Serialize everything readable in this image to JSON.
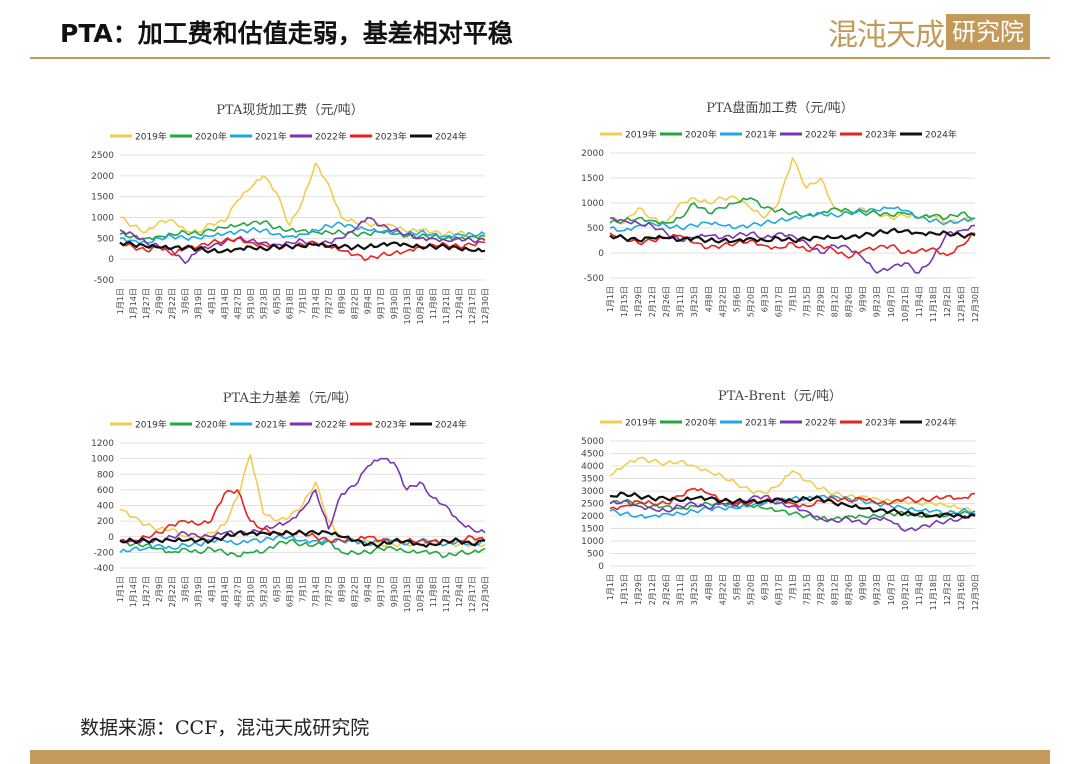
{
  "header": {
    "title": "PTA：加工费和估值走弱，基差相对平稳",
    "logo_text": "混沌天成",
    "logo_box_text": "研究院"
  },
  "footer": {
    "source": "数据来源：CCF，混沌天成研究院"
  },
  "colors": {
    "accent": "#c49a5a",
    "2019": "#f2cc4e",
    "2020": "#22a640",
    "2021": "#21a7e0",
    "2022": "#7a35b3",
    "2023": "#e8221d",
    "2024": "#111111"
  },
  "chart_data": [
    {
      "type": "line",
      "title": "PTA现货加工费（元/吨）",
      "ylim": [
        -500,
        2500
      ],
      "yticks": [
        "-500",
        "0",
        "500",
        "1000",
        "1500",
        "2000",
        "2500"
      ],
      "xticks": [
        "1月1日",
        "1月14日",
        "1月27日",
        "2月9日",
        "2月22日",
        "3月6日",
        "3月19日",
        "4月1日",
        "4月14日",
        "4月27日",
        "5月10日",
        "5月23日",
        "6月5日",
        "6月18日",
        "7月1日",
        "7月14日",
        "7月27日",
        "8月9日",
        "8月22日",
        "9月4日",
        "9月17日",
        "9月30日",
        "10月13日",
        "10月26日",
        "11月8日",
        "11月21日",
        "12月4日",
        "12月17日",
        "12月30日"
      ],
      "legend": [
        "2019年",
        "2020年",
        "2021年",
        "2022年",
        "2023年",
        "2024年"
      ],
      "series": [
        {
          "name": "2019年",
          "values": [
            1000,
            800,
            650,
            900,
            950,
            700,
            650,
            850,
            900,
            1400,
            1700,
            2000,
            1600,
            800,
            1400,
            2300,
            1800,
            1000,
            900,
            850,
            800,
            800,
            650,
            700,
            650,
            600,
            650,
            550,
            500
          ]
        },
        {
          "name": "2020年",
          "values": [
            600,
            550,
            500,
            550,
            600,
            650,
            600,
            700,
            750,
            800,
            850,
            900,
            750,
            700,
            700,
            650,
            650,
            650,
            600,
            600,
            650,
            600,
            550,
            550,
            550,
            500,
            500,
            550,
            550
          ]
        },
        {
          "name": "2021年",
          "values": [
            500,
            450,
            400,
            500,
            550,
            500,
            500,
            550,
            600,
            650,
            700,
            700,
            600,
            550,
            600,
            700,
            800,
            850,
            750,
            700,
            650,
            650,
            600,
            650,
            600,
            550,
            600,
            600,
            600
          ]
        },
        {
          "name": "2022年",
          "values": [
            700,
            600,
            400,
            300,
            200,
            -100,
            200,
            300,
            400,
            500,
            450,
            400,
            350,
            400,
            450,
            350,
            400,
            500,
            700,
            1000,
            800,
            700,
            600,
            500,
            500,
            450,
            500,
            450,
            450
          ]
        },
        {
          "name": "2023年",
          "values": [
            400,
            300,
            200,
            300,
            100,
            250,
            300,
            400,
            450,
            500,
            400,
            350,
            300,
            300,
            350,
            400,
            300,
            200,
            100,
            0,
            100,
            150,
            200,
            300,
            350,
            350,
            300,
            350,
            400
          ]
        },
        {
          "name": "2024年",
          "values": [
            400,
            350,
            300,
            280,
            260,
            280,
            250,
            200,
            200,
            250,
            300,
            250,
            300,
            300,
            300,
            350,
            300,
            300,
            280,
            300,
            350,
            400,
            350,
            300,
            300,
            300,
            250,
            200,
            200
          ]
        }
      ]
    },
    {
      "type": "line",
      "title": "PTA盘面加工费（元/吨）",
      "ylim": [
        -500,
        2000
      ],
      "yticks": [
        "-500",
        "0",
        "500",
        "1000",
        "1500",
        "2000"
      ],
      "xticks": [
        "1月1日",
        "1月15日",
        "1月29日",
        "2月12日",
        "2月26日",
        "3月11日",
        "3月25日",
        "4月8日",
        "4月22日",
        "5月6日",
        "5月20日",
        "6月3日",
        "6月17日",
        "7月1日",
        "7月15日",
        "7月29日",
        "8月12日",
        "8月26日",
        "9月9日",
        "9月23日",
        "10月7日",
        "10月21日",
        "11月4日",
        "11月18日",
        "12月2日",
        "12月16日",
        "12月30日"
      ],
      "legend": [
        "2019年",
        "2020年",
        "2021年",
        "2022年",
        "2023年",
        "2024年"
      ],
      "series": [
        {
          "name": "2019年",
          "values": [
            700,
            600,
            900,
            700,
            600,
            1000,
            1100,
            1000,
            1100,
            1100,
            900,
            700,
            1000,
            1900,
            1300,
            1500,
            900,
            800,
            900,
            800,
            700,
            750,
            700,
            750,
            600,
            650,
            700
          ]
        },
        {
          "name": "2020年",
          "values": [
            600,
            650,
            700,
            650,
            600,
            700,
            1000,
            800,
            900,
            1000,
            1100,
            900,
            850,
            800,
            750,
            800,
            900,
            850,
            800,
            800,
            750,
            800,
            700,
            750,
            700,
            800,
            700
          ]
        },
        {
          "name": "2021年",
          "values": [
            500,
            450,
            550,
            600,
            550,
            500,
            550,
            600,
            550,
            500,
            550,
            600,
            650,
            700,
            750,
            800,
            750,
            800,
            850,
            850,
            900,
            850,
            700,
            650,
            600,
            650,
            700
          ]
        },
        {
          "name": "2022年",
          "values": [
            700,
            650,
            600,
            550,
            400,
            250,
            300,
            350,
            300,
            350,
            400,
            300,
            400,
            350,
            200,
            0,
            150,
            100,
            -100,
            -400,
            -300,
            -200,
            -400,
            -100,
            400,
            450,
            550
          ]
        },
        {
          "name": "2023年",
          "values": [
            400,
            300,
            200,
            250,
            300,
            350,
            200,
            100,
            150,
            200,
            250,
            150,
            100,
            200,
            50,
            150,
            50,
            -100,
            50,
            100,
            150,
            0,
            50,
            100,
            -50,
            150,
            400
          ]
        },
        {
          "name": "2024年",
          "values": [
            350,
            300,
            250,
            300,
            300,
            250,
            300,
            250,
            250,
            250,
            300,
            250,
            300,
            250,
            280,
            300,
            300,
            300,
            350,
            400,
            450,
            450,
            400,
            400,
            400,
            350,
            350
          ]
        }
      ]
    },
    {
      "type": "line",
      "title": "PTA主力基差（元/吨）",
      "ylim": [
        -400,
        1200
      ],
      "yticks": [
        "-400",
        "-200",
        "0",
        "200",
        "400",
        "600",
        "800",
        "1000",
        "1200"
      ],
      "xticks": [
        "1月1日",
        "1月14日",
        "1月27日",
        "2月9日",
        "2月22日",
        "3月6日",
        "3月19日",
        "4月1日",
        "4月14日",
        "4月27日",
        "5月10日",
        "5月23日",
        "6月5日",
        "6月18日",
        "7月1日",
        "7月14日",
        "7月27日",
        "8月9日",
        "8月22日",
        "9月4日",
        "9月17日",
        "9月30日",
        "10月13日",
        "10月26日",
        "11月8日",
        "11月21日",
        "12月4日",
        "12月17日",
        "12月30日"
      ],
      "legend": [
        "2019年",
        "2020年",
        "2021年",
        "2022年",
        "2023年",
        "2024年"
      ],
      "series": [
        {
          "name": "2019年",
          "values": [
            350,
            250,
            150,
            100,
            100,
            0,
            0,
            50,
            150,
            500,
            1050,
            300,
            200,
            250,
            400,
            700,
            200,
            0,
            -50,
            -50,
            -100,
            -100,
            -100,
            -100,
            -100,
            -100,
            -100,
            -100,
            -100
          ]
        },
        {
          "name": "2020年",
          "values": [
            -50,
            -100,
            -100,
            -150,
            -200,
            -150,
            -200,
            -150,
            -200,
            -250,
            -200,
            -200,
            -100,
            -50,
            -100,
            -100,
            -50,
            -200,
            -200,
            -200,
            -150,
            -150,
            -200,
            -200,
            -200,
            -250,
            -200,
            -200,
            -150
          ]
        },
        {
          "name": "2021年",
          "values": [
            -200,
            -150,
            -150,
            -100,
            -150,
            -100,
            -100,
            -50,
            -50,
            -100,
            -50,
            -50,
            0,
            0,
            -50,
            -50,
            -50,
            -50,
            -50,
            -100,
            -50,
            -50,
            -100,
            -50,
            -50,
            -100,
            -50,
            -100,
            -50
          ]
        },
        {
          "name": "2022年",
          "values": [
            -50,
            -50,
            -50,
            -50,
            0,
            50,
            0,
            0,
            50,
            50,
            50,
            100,
            150,
            200,
            350,
            600,
            100,
            550,
            650,
            900,
            1000,
            950,
            600,
            700,
            500,
            400,
            200,
            100,
            50
          ]
        },
        {
          "name": "2023年",
          "values": [
            -50,
            -50,
            0,
            50,
            150,
            200,
            150,
            200,
            550,
            600,
            200,
            100,
            50,
            50,
            50,
            0,
            -50,
            -50,
            -50,
            0,
            -50,
            -50,
            -50,
            -50,
            -50,
            -50,
            -50,
            0,
            -50
          ]
        },
        {
          "name": "2024年",
          "values": [
            -50,
            -50,
            -50,
            -50,
            -50,
            -50,
            -50,
            -50,
            0,
            50,
            50,
            50,
            50,
            50,
            50,
            50,
            50,
            0,
            -50,
            -100,
            -100,
            -50,
            -50,
            -100,
            -100,
            -50,
            -50,
            -100,
            -50
          ]
        }
      ]
    },
    {
      "type": "line",
      "title": "PTA-Brent（元/吨）",
      "ylim": [
        0,
        5000
      ],
      "yticks": [
        "0",
        "500",
        "1000",
        "1500",
        "2000",
        "2500",
        "3000",
        "3500",
        "4000",
        "4500",
        "5000"
      ],
      "xticks": [
        "1月1日",
        "1月15日",
        "1月29日",
        "2月12日",
        "2月26日",
        "3月11日",
        "3月25日",
        "4月8日",
        "4月22日",
        "5月6日",
        "5月20日",
        "6月3日",
        "6月17日",
        "7月1日",
        "7月15日",
        "7月29日",
        "8月12日",
        "8月26日",
        "9月9日",
        "9月23日",
        "10月7日",
        "10月21日",
        "11月4日",
        "11月18日",
        "12月2日",
        "12月16日",
        "12月30日"
      ],
      "legend": [
        "2019年",
        "2020年",
        "2021年",
        "2022年",
        "2023年",
        "2024年"
      ],
      "series": [
        {
          "name": "2019年",
          "values": [
            3600,
            4000,
            4300,
            4200,
            4100,
            4200,
            4000,
            3800,
            3600,
            3300,
            3000,
            2900,
            3200,
            3800,
            3400,
            3100,
            2900,
            2800,
            2800,
            2700,
            2600,
            2600,
            2500,
            2500,
            2400,
            2300,
            2200
          ]
        },
        {
          "name": "2020年",
          "values": [
            2500,
            2600,
            2500,
            2400,
            2400,
            2300,
            2400,
            2500,
            2500,
            2400,
            2400,
            2300,
            2200,
            2100,
            2000,
            1900,
            1900,
            2000,
            2000,
            2000,
            2100,
            2100,
            2000,
            2000,
            2000,
            2100,
            2100
          ]
        },
        {
          "name": "2021年",
          "values": [
            2200,
            2100,
            2000,
            2000,
            2100,
            2100,
            2200,
            2300,
            2300,
            2300,
            2400,
            2500,
            2600,
            2700,
            2700,
            2800,
            2800,
            2700,
            2600,
            2500,
            2400,
            2300,
            2200,
            2200,
            2100,
            2200,
            2200
          ]
        },
        {
          "name": "2022年",
          "values": [
            2500,
            2600,
            2400,
            2300,
            2200,
            2400,
            2500,
            2300,
            2500,
            2400,
            2700,
            2800,
            2500,
            2400,
            2200,
            1900,
            1800,
            1900,
            1700,
            1900,
            1800,
            1400,
            1500,
            1700,
            1800,
            1900,
            2100
          ]
        },
        {
          "name": "2023年",
          "values": [
            2300,
            2400,
            2600,
            2500,
            2500,
            2800,
            3100,
            2900,
            2600,
            2500,
            2500,
            2600,
            2700,
            2500,
            2400,
            2600,
            2700,
            2600,
            2700,
            2500,
            2500,
            2700,
            2600,
            2700,
            2800,
            2700,
            2900
          ]
        },
        {
          "name": "2024年",
          "values": [
            2800,
            2900,
            2800,
            2700,
            2700,
            2600,
            2700,
            2700,
            2600,
            2600,
            2600,
            2600,
            2700,
            2600,
            2700,
            2700,
            2500,
            2400,
            2300,
            2200,
            2200,
            2100,
            2100,
            2000,
            2100,
            2000,
            2000
          ]
        }
      ]
    }
  ]
}
